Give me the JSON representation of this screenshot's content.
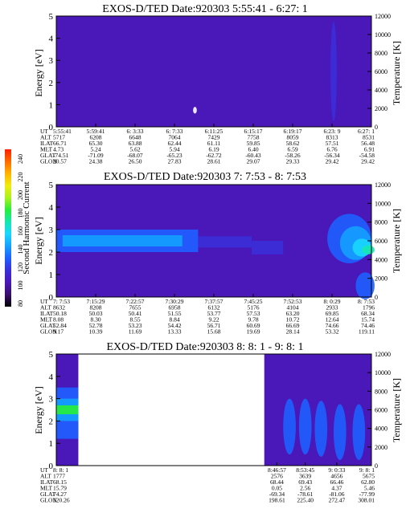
{
  "colorbar": {
    "label": "Second Harmonic Current",
    "ticks": [
      "240",
      "220",
      "200",
      "180",
      "160",
      "140",
      "120",
      "100",
      "80"
    ],
    "colors": [
      "#000000",
      "#3a0f6e",
      "#4a17b8",
      "#3a2fd8",
      "#1f5fff",
      "#14a0ff",
      "#19d7ff",
      "#16e7b0",
      "#26ee3a",
      "#a9f21c",
      "#f0ec10",
      "#ffb300",
      "#ff6a00",
      "#ff1f00"
    ]
  },
  "chart_data": [
    {
      "type": "heatmap",
      "title": "EXOS-D/TED   Date:920303  5:55:41 - 6:27: 1",
      "ylabel": "Energy [eV]",
      "y2label": "Temperature [K]",
      "yticks": [
        "0",
        "1",
        "2",
        "3",
        "4",
        "5"
      ],
      "y2ticks": [
        "0",
        "2000",
        "4000",
        "6000",
        "8000",
        "10000",
        "12000"
      ],
      "ylim": [
        0,
        5
      ],
      "y2lim": [
        0,
        12000
      ],
      "background_color": "#4a17b8",
      "gaps": [],
      "bands": [],
      "blobs": [
        [
          0.44,
          0.15,
          0.006,
          0.03,
          "#ffffff"
        ],
        [
          0.88,
          0.5,
          0.01,
          0.45,
          "#3a2fd8"
        ]
      ],
      "row_labels": [
        "UT",
        "ALT",
        "ILAT",
        "MLT",
        "GLAT",
        "GLON"
      ],
      "columns": [
        [
          "5:55:41",
          "5717",
          "66.71",
          "4.73",
          "-74.51",
          "20.57"
        ],
        [
          "5:59:41",
          "6208",
          "65.30",
          "5.24",
          "-71.09",
          "24.38"
        ],
        [
          "6: 3:33",
          "6648",
          "63.88",
          "5.62",
          "-68.07",
          "26.50"
        ],
        [
          "6: 7:33",
          "7064",
          "62.44",
          "5.94",
          "-65.23",
          "27.83"
        ],
        [
          "6:11:25",
          "7429",
          "61.11",
          "6.19",
          "-62.72",
          "28.61"
        ],
        [
          "6:15:17",
          "7758",
          "59.85",
          "6.40",
          "-60.43",
          "29.07"
        ],
        [
          "6:19:17",
          "8059",
          "58.62",
          "6.59",
          "-58.26",
          "29.33"
        ],
        [
          "6:23: 9",
          "8313",
          "57.51",
          "6.76",
          "-56.34",
          "29.42"
        ],
        [
          "6:27: 1",
          "8531",
          "56.48",
          "6.91",
          "-54.58",
          "29.42"
        ]
      ]
    },
    {
      "type": "heatmap",
      "title": "EXOS-D/TED   Date:920303  7: 7:53 - 8: 7:53",
      "ylabel": "Energy [eV]",
      "y2label": "Temperature [K]",
      "yticks": [
        "0",
        "1",
        "2",
        "3",
        "4",
        "5"
      ],
      "y2ticks": [
        "0",
        "2000",
        "4000",
        "6000",
        "8000",
        "10000",
        "12000"
      ],
      "ylim": [
        0,
        5
      ],
      "y2lim": [
        0,
        12000
      ],
      "background_color": "#4a17b8",
      "gaps": [],
      "bands": [
        [
          0.0,
          0.45,
          2.0,
          3.0,
          "#1f5fff"
        ],
        [
          0.02,
          0.4,
          2.25,
          2.75,
          "#14a0ff"
        ],
        [
          0.45,
          0.62,
          2.2,
          2.7,
          "#3a2fd8"
        ],
        [
          0.62,
          0.72,
          1.9,
          2.5,
          "#3a2fd8"
        ]
      ],
      "blobs": [
        [
          0.93,
          0.52,
          0.07,
          0.22,
          "#1f5fff"
        ],
        [
          0.95,
          0.48,
          0.05,
          0.15,
          "#14a0ff"
        ],
        [
          0.97,
          0.44,
          0.03,
          0.08,
          "#19d7ff"
        ],
        [
          0.99,
          0.42,
          0.02,
          0.04,
          "#16e7b0"
        ],
        [
          0.98,
          0.1,
          0.03,
          0.12,
          "#1f5fff"
        ]
      ],
      "row_labels": [
        "UT",
        "ALT",
        "ILAT",
        "MLT",
        "GLAT",
        "GLON"
      ],
      "columns": [
        [
          "7: 7:53",
          "8632",
          "50.18",
          "8.08",
          "52.84",
          "9.17"
        ],
        [
          "7:15:29",
          "8208",
          "50.03",
          "8.30",
          "52.78",
          "10.39"
        ],
        [
          "7:22:57",
          "7655",
          "50.41",
          "8.55",
          "53.23",
          "11.69"
        ],
        [
          "7:30:29",
          "6958",
          "51.55",
          "8.84",
          "54.42",
          "13.33"
        ],
        [
          "7:37:57",
          "6132",
          "53.77",
          "9.22",
          "56.71",
          "15.68"
        ],
        [
          "7:45:25",
          "5176",
          "57.53",
          "9.78",
          "60.69",
          "19.69"
        ],
        [
          "7:52:53",
          "4104",
          "63.20",
          "10.72",
          "66.69",
          "28.14"
        ],
        [
          "8: 0:29",
          "2933",
          "69.85",
          "12.64",
          "74.66",
          "53.32"
        ],
        [
          "8: 7:53",
          "1796",
          "68.34",
          "15.74",
          "74.46",
          "119.11"
        ]
      ]
    },
    {
      "type": "heatmap",
      "title": "EXOS-D/TED   Date:920303  8: 8: 1 - 9: 8: 1",
      "ylabel": "Energy [eV]",
      "y2label": "Temperature [K]",
      "yticks": [
        "0",
        "1",
        "2",
        "3",
        "4",
        "5"
      ],
      "y2ticks": [
        "0",
        "2000",
        "4000",
        "6000",
        "8000",
        "10000",
        "12000"
      ],
      "ylim": [
        0,
        5
      ],
      "y2lim": [
        0,
        12000
      ],
      "background_color": "#ffffff",
      "gaps": [
        [
          0.0,
          0.07
        ],
        [
          0.66,
          1.0
        ]
      ],
      "bands": [
        [
          0.0,
          0.07,
          1.2,
          3.5,
          "#1f5fff"
        ],
        [
          0.0,
          0.07,
          2.0,
          3.0,
          "#14a0ff"
        ],
        [
          0.0,
          0.07,
          2.3,
          2.7,
          "#26ee3a"
        ]
      ],
      "blobs": [
        [
          0.74,
          0.35,
          0.02,
          0.25,
          "#1f5fff"
        ],
        [
          0.79,
          0.35,
          0.02,
          0.25,
          "#1f5fff"
        ],
        [
          0.84,
          0.33,
          0.02,
          0.25,
          "#1f5fff"
        ],
        [
          0.9,
          0.3,
          0.02,
          0.25,
          "#1f5fff"
        ],
        [
          0.96,
          0.3,
          0.02,
          0.25,
          "#1f5fff"
        ]
      ],
      "row_labels": [
        "UT",
        "ALT",
        "ILAT",
        "MLT",
        "GLAT",
        "GLON"
      ],
      "columns": [
        [
          "8: 8: 1",
          "1777",
          "68.15",
          "15.79",
          "74.27",
          "120.26"
        ],
        [
          "8:46:57",
          "2576",
          "68.44",
          "0.05",
          "-69.34",
          "198.61"
        ],
        [
          "8:53:45",
          "3639",
          "69.43",
          "2.56",
          "-78.61",
          "225.40"
        ],
        [
          "9: 0:33",
          "4656",
          "66.46",
          "4.37",
          "-81.06",
          "272.47"
        ],
        [
          "9: 8: 1",
          "5675",
          "62.80",
          "5.46",
          "-77.99",
          "308.01"
        ]
      ],
      "column_x": [
        0.0,
        0.7,
        0.79,
        0.89,
        1.0
      ]
    }
  ]
}
